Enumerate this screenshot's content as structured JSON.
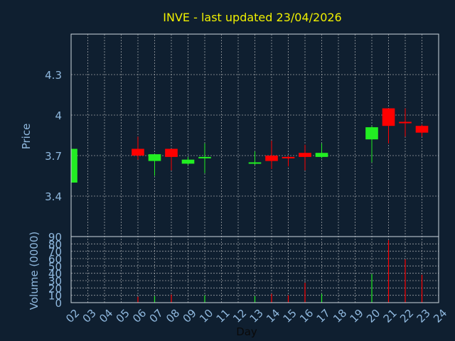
{
  "chart_data": {
    "type": "candlestick",
    "title": "INVE - last updated 23/04/2026",
    "xlabel": "Day",
    "price_label": "Price",
    "volume_label": "Volume (0000)",
    "x_ticks": [
      "02",
      "03",
      "04",
      "05",
      "06",
      "07",
      "08",
      "09",
      "10",
      "11",
      "12",
      "13",
      "14",
      "15",
      "16",
      "17",
      "18",
      "19",
      "20",
      "21",
      "22",
      "23",
      "24"
    ],
    "price_ticks": [
      3.4,
      3.7,
      4,
      4.3
    ],
    "price_tick_labels": [
      "3.4",
      "3.7",
      "4",
      "4.3"
    ],
    "price_ylim": [
      3.1,
      4.6
    ],
    "volume_ticks": [
      0,
      10,
      20,
      30,
      40,
      50,
      60,
      70,
      80,
      90
    ],
    "volume_tick_labels": [
      "0",
      "10",
      "20",
      "30",
      "40",
      "50",
      "60",
      "70",
      "80",
      "90"
    ],
    "volume_ylim": [
      0,
      90
    ],
    "grid": true,
    "colors": {
      "background": "#0f1f30",
      "title": "#f0f000",
      "axis_text": "#8fb8de",
      "frame": "#cfd8e0",
      "grid": "#c8c8c8",
      "up": "#22ee22",
      "down": "#ff0000"
    },
    "candles": [
      {
        "day": "02",
        "open": 3.5,
        "high": 3.75,
        "low": 3.5,
        "close": 3.75
      },
      {
        "day": "06",
        "open": 3.75,
        "high": 3.84,
        "low": 3.67,
        "close": 3.7
      },
      {
        "day": "07",
        "open": 3.66,
        "high": 3.71,
        "low": 3.55,
        "close": 3.71
      },
      {
        "day": "08",
        "open": 3.75,
        "high": 3.75,
        "low": 3.59,
        "close": 3.69
      },
      {
        "day": "09",
        "open": 3.64,
        "high": 3.69,
        "low": 3.63,
        "close": 3.67
      },
      {
        "day": "10",
        "open": 3.68,
        "high": 3.79,
        "low": 3.57,
        "close": 3.69
      },
      {
        "day": "13",
        "open": 3.64,
        "high": 3.73,
        "low": 3.63,
        "close": 3.65
      },
      {
        "day": "14",
        "open": 3.7,
        "high": 3.81,
        "low": 3.6,
        "close": 3.66
      },
      {
        "day": "15",
        "open": 3.69,
        "high": 3.7,
        "low": 3.62,
        "close": 3.68
      },
      {
        "day": "16",
        "open": 3.72,
        "high": 3.78,
        "low": 3.59,
        "close": 3.69
      },
      {
        "day": "17",
        "open": 3.69,
        "high": 3.79,
        "low": 3.68,
        "close": 3.72
      },
      {
        "day": "20",
        "open": 3.82,
        "high": 3.92,
        "low": 3.65,
        "close": 3.91
      },
      {
        "day": "21",
        "open": 4.05,
        "high": 4.05,
        "low": 3.79,
        "close": 3.92
      },
      {
        "day": "22",
        "open": 3.95,
        "high": 4.05,
        "low": 3.84,
        "close": 3.94
      },
      {
        "day": "23",
        "open": 3.92,
        "high": 3.93,
        "low": 3.84,
        "close": 3.87
      }
    ],
    "volume": [
      {
        "day": "06",
        "value": 8,
        "direction": "down"
      },
      {
        "day": "07",
        "value": 9,
        "direction": "up"
      },
      {
        "day": "08",
        "value": 11,
        "direction": "down"
      },
      {
        "day": "10",
        "value": 10,
        "direction": "up"
      },
      {
        "day": "13",
        "value": 9,
        "direction": "up"
      },
      {
        "day": "14",
        "value": 12,
        "direction": "down"
      },
      {
        "day": "15",
        "value": 10,
        "direction": "down"
      },
      {
        "day": "16",
        "value": 27,
        "direction": "down"
      },
      {
        "day": "17",
        "value": 12,
        "direction": "up"
      },
      {
        "day": "20",
        "value": 39,
        "direction": "up"
      },
      {
        "day": "21",
        "value": 85,
        "direction": "down"
      },
      {
        "day": "22",
        "value": 59,
        "direction": "down"
      },
      {
        "day": "23",
        "value": 38,
        "direction": "down"
      }
    ]
  }
}
